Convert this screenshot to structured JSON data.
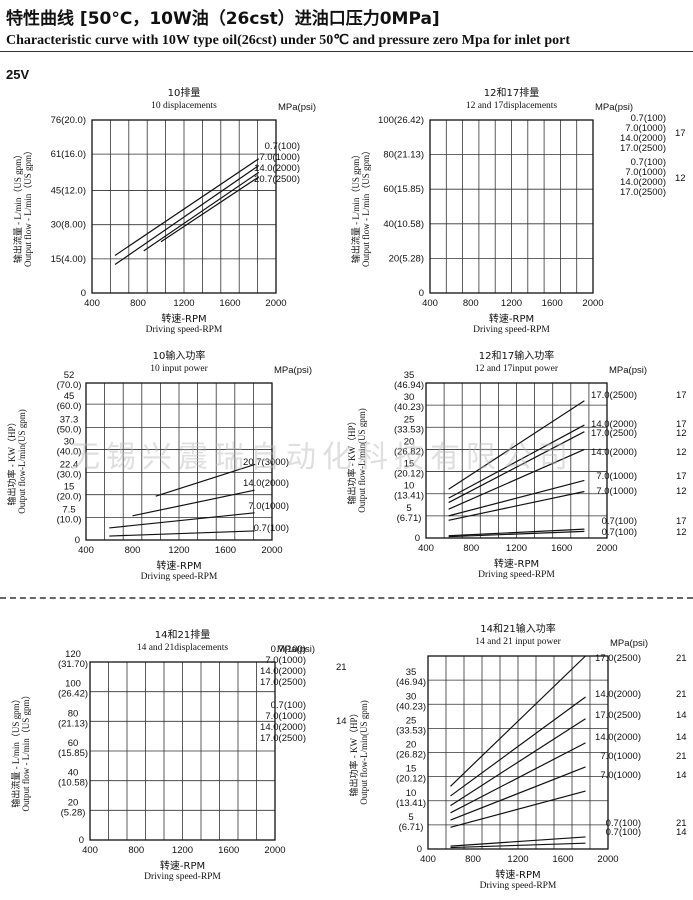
{
  "header": {
    "title_cn": "特性曲线 [50°C，10W油（26cst）进油口压力0MPa]",
    "title_en": "Characteristic curve with 10W type oil(26cst) under 50℃ and pressure zero Mpa for inlet port",
    "voltage": "25V"
  },
  "watermark": "无锡兴震瑞自动化科技有限公司",
  "chart_data": [
    {
      "id": "c1",
      "type": "line",
      "title": "10排量",
      "subtitle": "10 displacements",
      "unit_label": "MPa(psi)",
      "xlabel_cn": "转速-RPM",
      "xlabel_en": "Driving speed-RPM",
      "ylabel_cn": "输出流量 - L/min（US gpm）",
      "ylabel_en": "Output flow - L/min（US gpm）",
      "xlim": [
        400,
        2000
      ],
      "ylim": [
        0,
        76
      ],
      "x_ticks": [
        400,
        800,
        1200,
        1600,
        2000
      ],
      "x_tick_labels": [
        "400",
        "800",
        "1200",
        "1600",
        "2000"
      ],
      "y_ticks": [
        0,
        15,
        30,
        45,
        61,
        76
      ],
      "y_tick_labels": [
        [
          "0"
        ],
        [
          "15(4.00)"
        ],
        [
          "30(8.00)"
        ],
        [
          "45(12.0)"
        ],
        [
          "61(16.0)"
        ],
        [
          "76(20.0)"
        ]
      ],
      "grid": true,
      "series": [
        {
          "name": "0.7(100)",
          "x": [
            600,
            1850
          ],
          "y": [
            16.5,
            59
          ]
        },
        {
          "name": "7.0(1000)",
          "x": [
            600,
            1850
          ],
          "y": [
            12.5,
            56
          ]
        },
        {
          "name": "14.0(2000)",
          "x": [
            850,
            1850
          ],
          "y": [
            18.5,
            53
          ]
        },
        {
          "name": "20.7(2500)",
          "x": [
            1000,
            1850
          ],
          "y": [
            22.5,
            51
          ]
        }
      ],
      "legend_labels": [
        [
          "0.7(100)"
        ],
        [
          "7.0(1000)"
        ],
        [
          "14.0(2000)"
        ],
        [
          "20.7(2500)"
        ]
      ]
    },
    {
      "id": "c2",
      "type": "line",
      "title": "12和17排量",
      "subtitle": "12 and 17displacements",
      "unit_label": "MPa(psi)",
      "xlabel_cn": "转速-RPM",
      "xlabel_en": "Driving speed-RPM",
      "ylabel_cn": "输出流量 - L/min（US gpm）",
      "ylabel_en": "Output flow - L/min（US gpm）",
      "xlim": [
        400,
        2000
      ],
      "ylim": [
        0,
        100
      ],
      "x_ticks": [
        400,
        800,
        1200,
        1600,
        2000
      ],
      "x_tick_labels": [
        "400",
        "800",
        "1200",
        "1600",
        "2000"
      ],
      "y_ticks": [
        0,
        20,
        40,
        60,
        80,
        100
      ],
      "y_tick_labels": [
        [
          "0"
        ],
        [
          "20(5.28)"
        ],
        [
          "40(10.58)"
        ],
        [
          "60(15.85)"
        ],
        [
          "80(21.13)"
        ],
        [
          "100(26.42)"
        ]
      ],
      "grid": true,
      "series": [],
      "legend_labels": [
        [
          "0.7(100)"
        ],
        [
          "7.0(1000)"
        ],
        [
          "14.0(2000)"
        ],
        [
          "17.0(2500)"
        ],
        [
          "0.7(100)"
        ],
        [
          "7.0(1000)"
        ],
        [
          "14.0(2000)"
        ],
        [
          "17.0(2500)"
        ]
      ],
      "group_labels": [
        "17",
        "12"
      ]
    },
    {
      "id": "c3",
      "type": "line",
      "title": "10输入功率",
      "subtitle": "10 input power",
      "unit_label": "MPa(psi)",
      "xlabel_cn": "转速-RPM",
      "xlabel_en": "Driving speed-RPM",
      "ylabel_cn": "输出功率 - KW（HP）",
      "ylabel_en": "Output flow-L/min(US gpm)",
      "xlim": [
        400,
        2000
      ],
      "ylim": [
        0,
        52
      ],
      "x_ticks": [
        400,
        800,
        1200,
        1600,
        2000
      ],
      "x_tick_labels": [
        "400",
        "800",
        "1200",
        "1600",
        "2000"
      ],
      "y_ticks": [
        0,
        7.5,
        15,
        22.4,
        30,
        37.3,
        45,
        52
      ],
      "y_tick_labels": [
        [
          "0"
        ],
        [
          "7.5",
          "(10.0)"
        ],
        [
          "15",
          "(20.0)"
        ],
        [
          "22.4",
          "(30.0)"
        ],
        [
          "30",
          "(40.0)"
        ],
        [
          "37.3",
          "(50.0)"
        ],
        [
          "45",
          "(60.0)"
        ],
        [
          "52",
          "(70.0)"
        ]
      ],
      "grid": true,
      "series": [
        {
          "name": "20.7(3000)",
          "x": [
            1000,
            1850
          ],
          "y": [
            14.5,
            25
          ]
        },
        {
          "name": "14.0(2000)",
          "x": [
            800,
            1850
          ],
          "y": [
            8,
            16.5
          ]
        },
        {
          "name": "7.0(1000)",
          "x": [
            600,
            1850
          ],
          "y": [
            4,
            9
          ]
        },
        {
          "name": "0.7(100)",
          "x": [
            600,
            1850
          ],
          "y": [
            1.3,
            3
          ]
        }
      ],
      "legend_labels": [
        [
          "20.7(3000)"
        ],
        [
          "14.0(2000)"
        ],
        [
          "7.0(1000)"
        ],
        [
          "0.7(100)"
        ]
      ]
    },
    {
      "id": "c4",
      "type": "line",
      "title": "12和17输入功率",
      "subtitle": "12 and 17input power",
      "unit_label": "MPa(psi)",
      "xlabel_cn": "转速-RPM",
      "xlabel_en": "Driving speed-RPM",
      "ylabel_cn": "输出功率 - KW（HP）",
      "ylabel_en": "Output flow-L/min(US gpm)",
      "xlim": [
        400,
        2000
      ],
      "ylim": [
        0,
        35
      ],
      "x_ticks": [
        400,
        800,
        1200,
        1600,
        2000
      ],
      "x_tick_labels": [
        "400",
        "800",
        "1200",
        "1600",
        "2000"
      ],
      "y_ticks": [
        0,
        5,
        10,
        15,
        20,
        25,
        30,
        35
      ],
      "y_tick_labels": [
        [
          "0"
        ],
        [
          "5",
          "(6.71)"
        ],
        [
          "10",
          "(13.41)"
        ],
        [
          "15",
          "(20.12)"
        ],
        [
          "20",
          "(26.82)"
        ],
        [
          "25",
          "(33.53)"
        ],
        [
          "30",
          "(40.23)"
        ],
        [
          "35",
          "(46.94)"
        ]
      ],
      "grid": true,
      "series": [
        {
          "name": "17.0(2500) 17",
          "x": [
            600,
            1800
          ],
          "y": [
            11,
            31
          ]
        },
        {
          "name": "14.0(2000) 17",
          "x": [
            600,
            1800
          ],
          "y": [
            9,
            25.5
          ]
        },
        {
          "name": "17.0(2500) 12",
          "x": [
            600,
            1800
          ],
          "y": [
            8,
            24
          ]
        },
        {
          "name": "14.0(2000) 12",
          "x": [
            600,
            1800
          ],
          "y": [
            6.5,
            20
          ]
        },
        {
          "name": "7.0(1000) 17",
          "x": [
            600,
            1800
          ],
          "y": [
            5,
            13
          ]
        },
        {
          "name": "7.0(1000) 12",
          "x": [
            600,
            1800
          ],
          "y": [
            4,
            10.5
          ]
        },
        {
          "name": "0.7(100) 17",
          "x": [
            600,
            1800
          ],
          "y": [
            0.5,
            2
          ]
        },
        {
          "name": "0.7(100) 12",
          "x": [
            600,
            1800
          ],
          "y": [
            0.3,
            1.5
          ]
        }
      ],
      "legend_labels": [
        [
          "17.0(2500)",
          "17"
        ],
        [
          "14.0(2000)",
          "17"
        ],
        [
          "17.0(2500)",
          "12"
        ],
        [
          "14.0(2000)",
          "12"
        ],
        [
          "7.0(1000)",
          "17"
        ],
        [
          "7.0(1000)",
          "12"
        ],
        [
          "0.7(100)",
          "17"
        ],
        [
          "0.7(100)",
          "12"
        ]
      ]
    },
    {
      "id": "c5",
      "type": "line",
      "title": "14和21排量",
      "subtitle": "14 and 21displacements",
      "unit_label": "MPa(psi)",
      "xlabel_cn": "转速-RPM",
      "xlabel_en": "Driving speed-RPM",
      "ylabel_cn": "输出流量 - L/min（US gpm）",
      "ylabel_en": "Output flow - L/min（US gpm）",
      "xlim": [
        400,
        2000
      ],
      "ylim": [
        0,
        120
      ],
      "x_ticks": [
        400,
        800,
        1200,
        1600,
        2000
      ],
      "x_tick_labels": [
        "400",
        "800",
        "1200",
        "1600",
        "2000"
      ],
      "y_ticks": [
        0,
        20,
        40,
        60,
        80,
        100,
        120
      ],
      "y_tick_labels": [
        [
          "0"
        ],
        [
          "20",
          "(5.28)"
        ],
        [
          "40",
          "(10.58)"
        ],
        [
          "60",
          "(15.85)"
        ],
        [
          "80",
          "(21.13)"
        ],
        [
          "100",
          "(26.42)"
        ],
        [
          "120",
          "(31.70)"
        ]
      ],
      "grid": true,
      "series": [],
      "legend_labels": [
        [
          "0.7(100)"
        ],
        [
          "7.0(1000)"
        ],
        [
          "14.0(2000)"
        ],
        [
          "17.0(2500)"
        ],
        [
          "0.7(100)"
        ],
        [
          "7.0(1000)"
        ],
        [
          "14.0(2000)"
        ],
        [
          "17.0(2500)"
        ]
      ],
      "group_labels": [
        "21",
        "14"
      ]
    },
    {
      "id": "c6",
      "type": "line",
      "title": "14和21输入功率",
      "subtitle": "14 and 21 input power",
      "unit_label": "MPa(psi)",
      "xlabel_cn": "转速-RPM",
      "xlabel_en": "Driving speed-RPM",
      "ylabel_cn": "输出功率 - KW（HP）",
      "ylabel_en": "Output flow-L/min(US gpm)",
      "xlim": [
        400,
        2000
      ],
      "ylim": [
        0,
        40
      ],
      "x_ticks": [
        400,
        800,
        1200,
        1600,
        2000
      ],
      "x_tick_labels": [
        "400",
        "800",
        "1200",
        "1600",
        "2000"
      ],
      "y_ticks": [
        0,
        5,
        10,
        15,
        20,
        25,
        30,
        35
      ],
      "y_tick_labels": [
        [
          "0"
        ],
        [
          "5",
          "(6.71)"
        ],
        [
          "10",
          "(13.41)"
        ],
        [
          "15",
          "(20.12)"
        ],
        [
          "20",
          "(26.82)"
        ],
        [
          "25",
          "(33.53)"
        ],
        [
          "30",
          "(40.23)"
        ],
        [
          "35",
          "(46.94)"
        ]
      ],
      "grid": true,
      "series": [
        {
          "name": "17.0(2500) 21",
          "x": [
            600,
            1800
          ],
          "y": [
            13,
            40
          ]
        },
        {
          "name": "14.0(2000) 21",
          "x": [
            600,
            1800
          ],
          "y": [
            11,
            31.5
          ]
        },
        {
          "name": "17.0(2500) 14",
          "x": [
            600,
            1800
          ],
          "y": [
            9,
            27
          ]
        },
        {
          "name": "14.0(2000) 14",
          "x": [
            600,
            1800
          ],
          "y": [
            7.5,
            22
          ]
        },
        {
          "name": "7.0(1000) 21",
          "x": [
            600,
            1800
          ],
          "y": [
            6,
            17
          ]
        },
        {
          "name": "7.0(1000) 14",
          "x": [
            600,
            1800
          ],
          "y": [
            4.5,
            12
          ]
        },
        {
          "name": "0.7(100) 21",
          "x": [
            600,
            1800
          ],
          "y": [
            0.6,
            2.5
          ]
        },
        {
          "name": "0.7(100) 14",
          "x": [
            600,
            1800
          ],
          "y": [
            0.3,
            1.2
          ]
        }
      ],
      "legend_labels": [
        [
          "17.0(2500)",
          "21"
        ],
        [
          "14.0(2000)",
          "21"
        ],
        [
          "17.0(2500)",
          "14"
        ],
        [
          "14.0(2000)",
          "14"
        ],
        [
          "7.0(1000)",
          "21"
        ],
        [
          "7.0(1000)",
          "14"
        ],
        [
          "0.7(100)",
          "21"
        ],
        [
          "0.7(100)",
          "14"
        ]
      ]
    }
  ]
}
